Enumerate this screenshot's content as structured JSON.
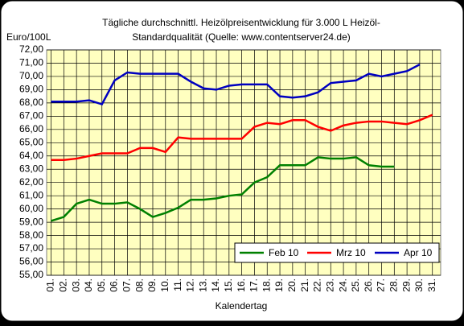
{
  "chart_data": {
    "type": "line",
    "title": "Tägliche durchschnittl. Heizölpreisentwicklung für 3.000 L Heizöl-",
    "subtitle": "Standardqualität (Quelle: www.contentserver24.de)",
    "y_label": "Euro/100L",
    "x_label": "Kalendertag",
    "categories": [
      "01.",
      "02.",
      "03.",
      "04.",
      "05.",
      "06.",
      "07.",
      "08.",
      "09.",
      "10.",
      "11.",
      "12.",
      "13.",
      "14.",
      "15.",
      "16.",
      "17.",
      "18.",
      "19.",
      "20.",
      "21.",
      "22.",
      "23.",
      "24.",
      "25.",
      "26.",
      "27.",
      "28.",
      "29.",
      "30.",
      "31."
    ],
    "series": [
      {
        "name": "Feb 10",
        "color": "#008000",
        "values": [
          59.1,
          59.4,
          60.4,
          60.7,
          60.4,
          60.4,
          60.5,
          60.0,
          59.4,
          59.7,
          60.1,
          60.7,
          60.7,
          60.8,
          61.0,
          61.1,
          62.0,
          62.4,
          63.3,
          63.3,
          63.3,
          63.9,
          63.8,
          63.8,
          63.9,
          63.3,
          63.2,
          63.2,
          null,
          null,
          null
        ]
      },
      {
        "name": "Mrz 10",
        "color": "#ff0000",
        "values": [
          63.7,
          63.7,
          63.8,
          64.0,
          64.2,
          64.2,
          64.2,
          64.6,
          64.6,
          64.3,
          65.4,
          65.3,
          65.3,
          65.3,
          65.3,
          65.3,
          66.2,
          66.5,
          66.4,
          66.7,
          66.7,
          66.2,
          65.9,
          66.3,
          66.5,
          66.6,
          66.6,
          66.5,
          66.4,
          66.7,
          67.1
        ]
      },
      {
        "name": "Apr 10",
        "color": "#0000c0",
        "values": [
          68.1,
          68.1,
          68.1,
          68.2,
          67.9,
          69.7,
          70.3,
          70.2,
          70.2,
          70.2,
          70.2,
          69.6,
          69.1,
          69.0,
          69.3,
          69.4,
          69.4,
          69.4,
          68.5,
          68.4,
          68.5,
          68.8,
          69.5,
          69.6,
          69.7,
          70.2,
          70.0,
          70.2,
          70.4,
          70.9,
          null
        ]
      }
    ],
    "ylim": [
      55,
      72
    ],
    "yticks": [
      {
        "value": 55,
        "label": "55,00"
      },
      {
        "value": 56,
        "label": "56,00"
      },
      {
        "value": 57,
        "label": "57,00"
      },
      {
        "value": 58,
        "label": "58,00"
      },
      {
        "value": 59,
        "label": "59,00"
      },
      {
        "value": 60,
        "label": "60,00"
      },
      {
        "value": 61,
        "label": "61,00"
      },
      {
        "value": 62,
        "label": "62,00"
      },
      {
        "value": 63,
        "label": "63,00"
      },
      {
        "value": 64,
        "label": "64,00"
      },
      {
        "value": 65,
        "label": "65,00"
      },
      {
        "value": 66,
        "label": "66,00"
      },
      {
        "value": 67,
        "label": "67,00"
      },
      {
        "value": 68,
        "label": "68,00"
      },
      {
        "value": 69,
        "label": "69,00"
      },
      {
        "value": 70,
        "label": "70,00"
      },
      {
        "value": 71,
        "label": "71,00"
      },
      {
        "value": 72,
        "label": "72,00"
      }
    ],
    "grid": true,
    "legend": "lower right",
    "plot_color": "#ffffc0"
  }
}
